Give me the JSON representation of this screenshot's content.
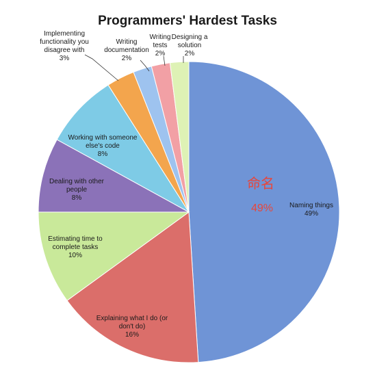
{
  "chart_data": {
    "type": "pie",
    "title": "Programmers' Hardest Tasks",
    "slices": [
      {
        "label": "Naming things",
        "pct_label": "49%",
        "value": 49,
        "color": "#6f94d6"
      },
      {
        "label": "Explaining what I do (or don't do)",
        "pct_label": "16%",
        "value": 16,
        "color": "#db6e6a"
      },
      {
        "label": "Estimating time to complete tasks",
        "pct_label": "10%",
        "value": 10,
        "color": "#c9e99a"
      },
      {
        "label": "Dealing with other people",
        "pct_label": "8%",
        "value": 8,
        "color": "#8b72b8"
      },
      {
        "label": "Working with someone else's code",
        "pct_label": "8%",
        "value": 8,
        "color": "#7ecbe6"
      },
      {
        "label": "Implementing functionality you disagree with",
        "pct_label": "3%",
        "value": 3,
        "color": "#f3a54d"
      },
      {
        "label": "Writing documentation",
        "pct_label": "2%",
        "value": 2,
        "color": "#9ec3ef"
      },
      {
        "label": "Writing tests",
        "pct_label": "2%",
        "value": 2,
        "color": "#f2a0a5"
      },
      {
        "label": "Designing a solution",
        "pct_label": "2%",
        "value": 2,
        "color": "#def2b5"
      }
    ],
    "annotation": {
      "text": "命名",
      "pct": "49%",
      "color": "#e8463a"
    }
  }
}
